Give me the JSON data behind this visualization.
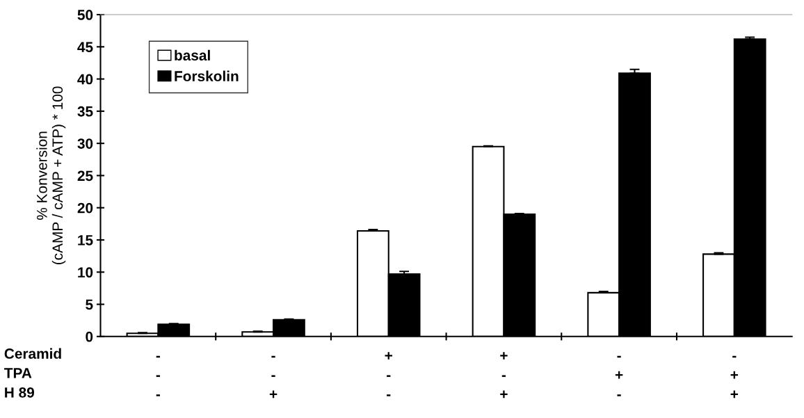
{
  "chart_data": {
    "type": "bar",
    "ylabel": "% Konversion\n(cAMP / cAMP + ATP) * 100",
    "categories": [
      "-\n-\n-",
      "-\n-\n+",
      "+\n-\n-",
      "+\n-\n+",
      "-\n+\n-",
      "-\n+\n+"
    ],
    "series": [
      {
        "name": "basal",
        "color": "#ffffff",
        "values": [
          0.5,
          0.7,
          16.4,
          29.5,
          6.8,
          12.8
        ],
        "errors": [
          0.1,
          0.1,
          0.2,
          0.1,
          0.2,
          0.2
        ]
      },
      {
        "name": "Forskolin",
        "color": "#000000",
        "values": [
          1.9,
          2.6,
          9.7,
          19.0,
          40.9,
          46.2
        ],
        "errors": [
          0.1,
          0.1,
          0.4,
          0.1,
          0.6,
          0.3
        ]
      }
    ],
    "annotations": [
      "Ceramid",
      "TPA",
      "H 89"
    ],
    "ylim": [
      0,
      50
    ],
    "yticks": [
      0,
      5,
      10,
      15,
      20,
      25,
      30,
      35,
      40,
      45,
      50
    ],
    "grid": false,
    "legend": "top left"
  }
}
